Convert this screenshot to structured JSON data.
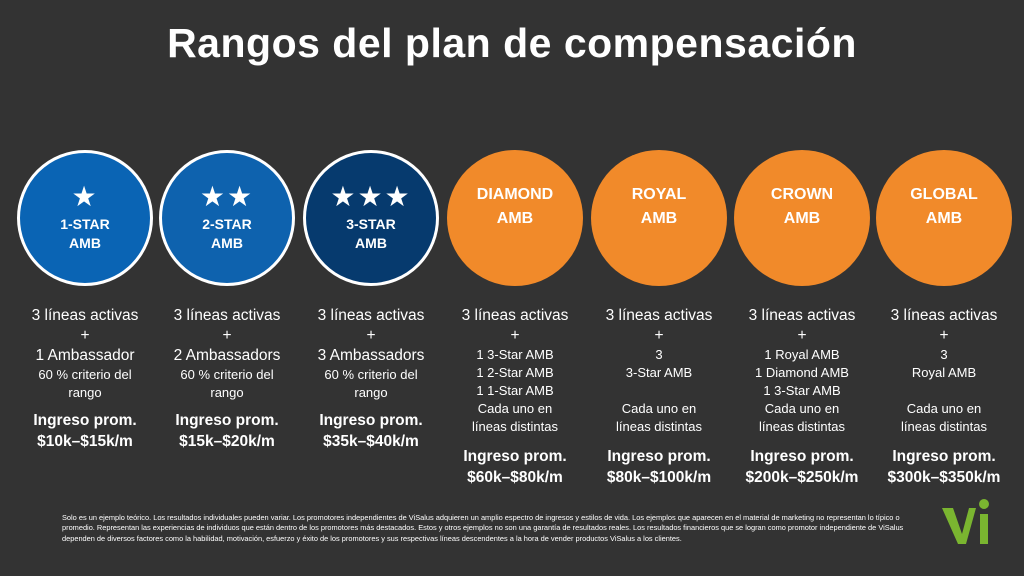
{
  "title": "Rangos del plan de compensación",
  "colors": {
    "background": "#333333",
    "blue_light": "#0a64b4",
    "blue_mid": "#0e62ae",
    "blue_dark": "#063a6e",
    "orange": "#f18a2a",
    "logo_green": "#7ab530"
  },
  "ranks": [
    {
      "stars": "★",
      "label1": "1-STAR",
      "label2": "AMB",
      "line1": "3 líneas activas",
      "line2": "+",
      "line3": "1 Ambassador",
      "note1": "60 % criterio del",
      "note2": "rango",
      "income_label": "Ingreso prom.",
      "income_value": "$10k–$15k/m"
    },
    {
      "stars": "★★",
      "label1": "2-STAR",
      "label2": "AMB",
      "line1": "3 líneas activas",
      "line2": "+",
      "line3": "2 Ambassadors",
      "note1": "60 % criterio del",
      "note2": "rango",
      "income_label": "Ingreso prom.",
      "income_value": "$15k–$20k/m"
    },
    {
      "stars": "★★★",
      "label1": "3-STAR",
      "label2": "AMB",
      "line1": "3 líneas activas",
      "line2": "+",
      "line3": "3 Ambassadors",
      "note1": "60 % criterio del",
      "note2": "rango",
      "income_label": "Ingreso prom.",
      "income_value": "$35k–$40k/m"
    },
    {
      "label1": "DIAMOND",
      "label2": "AMB",
      "line1": "3 líneas activas",
      "line2": "+",
      "req1": "1  3-Star AMB",
      "req2": "1  2-Star AMB",
      "req3": "1  1-Star AMB",
      "note1": "Cada uno en",
      "note2": "líneas distintas",
      "income_label": "Ingreso prom.",
      "income_value": "$60k–$80k/m"
    },
    {
      "label1": "ROYAL",
      "label2": "AMB",
      "line1": "3 líneas activas",
      "line2": "+",
      "req1": "3",
      "req2": "3-Star AMB",
      "req3": "",
      "note1": "Cada uno en",
      "note2": "líneas distintas",
      "income_label": "Ingreso prom.",
      "income_value": "$80k–$100k/m"
    },
    {
      "label1": "CROWN",
      "label2": "AMB",
      "line1": "3 líneas activas",
      "line2": "+",
      "req1": "1 Royal AMB",
      "req2": "1 Diamond AMB",
      "req3": "1  3-Star AMB",
      "note1": "Cada uno en",
      "note2": "líneas distintas",
      "income_label": "Ingreso prom.",
      "income_value": "$200k–$250k/m"
    },
    {
      "label1": "GLOBAL",
      "label2": "AMB",
      "line1": "3 líneas activas",
      "line2": "+",
      "req1": "3",
      "req2": "Royal AMB",
      "req3": "",
      "note1": "Cada uno en",
      "note2": "líneas distintas",
      "income_label": "Ingreso prom.",
      "income_value": "$300k–$350k/m"
    }
  ],
  "disclaimer": "Solo es un ejemplo teórico. Los resultados individuales pueden variar.  Los promotores independientes de ViSalus adquieren un amplio espectro de ingresos y estilos de vida. Los ejemplos que aparecen en el material de marketing no representan lo típico o promedio. Representan las experiencias de individuos que están dentro de los promotores más destacados.  Estos y otros ejemplos no son una garantía de resultados reales. Los resultados financieros que se logran como promotor independiente de ViSalus dependen de diversos factores como la habilidad, motivación, esfuerzo y éxito de los promotores y sus respectivas líneas descendentes a la hora de vender productos ViSalus a los clientes.",
  "logo": "visalus-vi-logo"
}
